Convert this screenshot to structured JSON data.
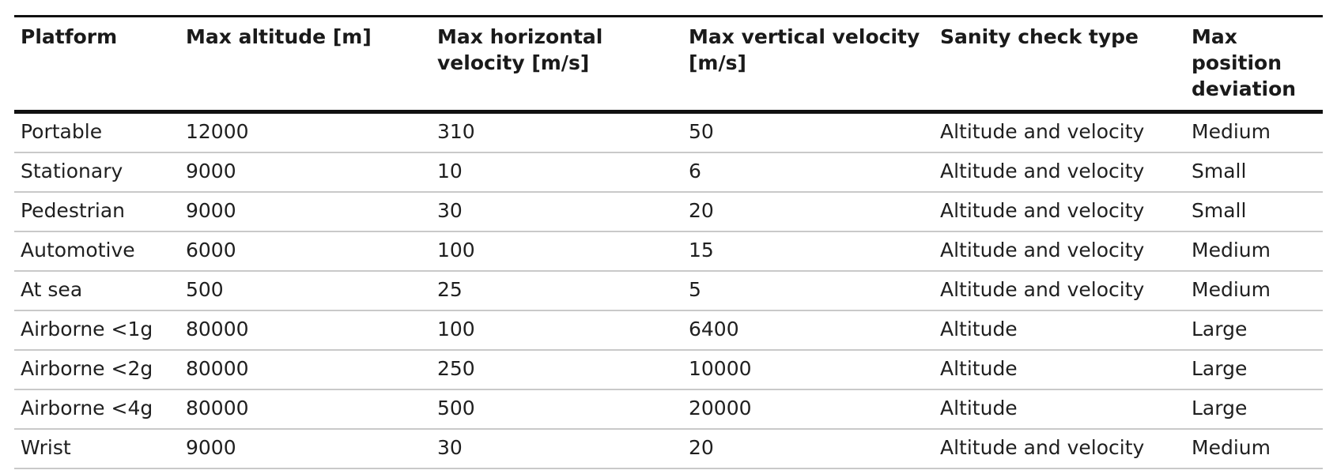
{
  "table": {
    "headers": [
      "Platform",
      "Max altitude [m]",
      "Max horizontal velocity [m/s]",
      "Max vertical velocity [m/s]",
      "Sanity check type",
      "Max position deviation"
    ],
    "rows": [
      [
        "Portable",
        "12000",
        "310",
        "50",
        "Altitude and velocity",
        "Medium"
      ],
      [
        "Stationary",
        "9000",
        "10",
        "6",
        "Altitude and velocity",
        "Small"
      ],
      [
        "Pedestrian",
        "9000",
        "30",
        "20",
        "Altitude and velocity",
        "Small"
      ],
      [
        "Automotive",
        "6000",
        "100",
        "15",
        "Altitude and velocity",
        "Medium"
      ],
      [
        "At sea",
        "500",
        "25",
        "5",
        "Altitude and velocity",
        "Medium"
      ],
      [
        "Airborne <1g",
        "80000",
        "100",
        "6400",
        "Altitude",
        "Large"
      ],
      [
        "Airborne <2g",
        "80000",
        "250",
        "10000",
        "Altitude",
        "Large"
      ],
      [
        "Airborne <4g",
        "80000",
        "500",
        "20000",
        "Altitude",
        "Large"
      ],
      [
        "Wrist",
        "9000",
        "30",
        "20",
        "Altitude and velocity",
        "Medium"
      ]
    ]
  }
}
